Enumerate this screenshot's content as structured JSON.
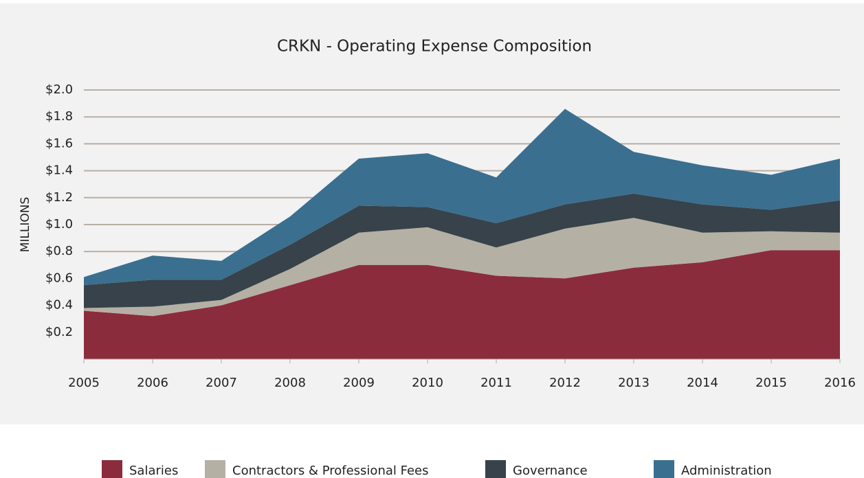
{
  "chart_data": {
    "type": "stacked_area",
    "title": "CRKN - Operating Expense Composition",
    "y_label": "MILLIONS",
    "x": [
      2005,
      2006,
      2007,
      2008,
      2009,
      2010,
      2011,
      2012,
      2013,
      2014,
      2015,
      2016
    ],
    "xlim": [
      2005,
      2016
    ],
    "ylim": [
      0,
      2.0
    ],
    "yticks": [
      {
        "value": 0.2,
        "label": "$0.2"
      },
      {
        "value": 0.4,
        "label": "$0.4"
      },
      {
        "value": 0.6,
        "label": "$0.6"
      },
      {
        "value": 0.8,
        "label": "$0.8"
      },
      {
        "value": 1.0,
        "label": "$1.0"
      },
      {
        "value": 1.2,
        "label": "$1.2"
      },
      {
        "value": 1.4,
        "label": "$1.4"
      },
      {
        "value": 1.6,
        "label": "$1.6"
      },
      {
        "value": 1.8,
        "label": "$1.8"
      },
      {
        "value": 2.0,
        "label": "$2.0"
      }
    ],
    "grid": true,
    "legend": "bottom",
    "series": [
      {
        "name": "Salaries",
        "color": "#8b2c3d",
        "values": [
          0.36,
          0.32,
          0.4,
          0.55,
          0.7,
          0.7,
          0.62,
          0.6,
          0.68,
          0.72,
          0.81,
          0.81
        ]
      },
      {
        "name": "Contractors & Professional Fees",
        "color": "#b5b0a4",
        "values": [
          0.02,
          0.07,
          0.04,
          0.12,
          0.24,
          0.28,
          0.21,
          0.37,
          0.37,
          0.22,
          0.14,
          0.13
        ]
      },
      {
        "name": "Governance",
        "color": "#37424a",
        "values": [
          0.17,
          0.2,
          0.15,
          0.18,
          0.2,
          0.15,
          0.18,
          0.18,
          0.18,
          0.21,
          0.16,
          0.24
        ]
      },
      {
        "name": "Administration",
        "color": "#3a6f8f",
        "values": [
          0.06,
          0.18,
          0.14,
          0.21,
          0.35,
          0.4,
          0.34,
          0.71,
          0.31,
          0.29,
          0.26,
          0.31
        ]
      }
    ]
  }
}
